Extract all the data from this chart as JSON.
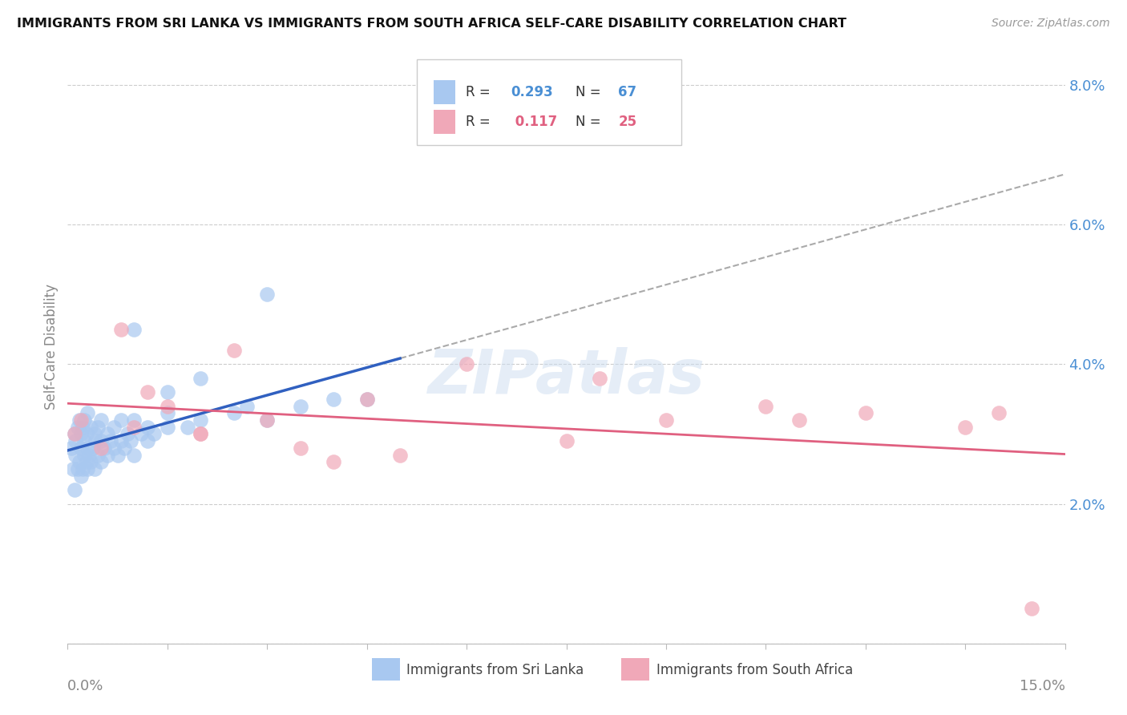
{
  "title": "IMMIGRANTS FROM SRI LANKA VS IMMIGRANTS FROM SOUTH AFRICA SELF-CARE DISABILITY CORRELATION CHART",
  "source": "Source: ZipAtlas.com",
  "ylabel": "Self-Care Disability",
  "xlim": [
    0.0,
    15.0
  ],
  "ylim": [
    0.0,
    8.5
  ],
  "ytick_vals": [
    0.0,
    2.0,
    4.0,
    6.0,
    8.0
  ],
  "ytick_labels": [
    "",
    "2.0%",
    "4.0%",
    "6.0%",
    "8.0%"
  ],
  "color_blue": "#a8c8f0",
  "color_pink": "#f0a8b8",
  "color_blue_text": "#4a8fd4",
  "color_pink_text": "#e06080",
  "color_line_blue": "#3060c0",
  "color_line_pink": "#e06080",
  "color_trend_gray": "#aaaaaa",
  "watermark": "ZIPatlas",
  "legend_r1": "R = 0.293",
  "legend_n1": "N = 67",
  "legend_r2": "R =  0.117",
  "legend_n2": "N = 25",
  "sri_lanka_x": [
    0.05,
    0.08,
    0.1,
    0.1,
    0.12,
    0.12,
    0.15,
    0.15,
    0.18,
    0.18,
    0.2,
    0.2,
    0.2,
    0.22,
    0.22,
    0.25,
    0.25,
    0.25,
    0.28,
    0.28,
    0.3,
    0.3,
    0.3,
    0.32,
    0.35,
    0.35,
    0.38,
    0.4,
    0.4,
    0.42,
    0.45,
    0.45,
    0.5,
    0.5,
    0.5,
    0.55,
    0.6,
    0.6,
    0.65,
    0.7,
    0.7,
    0.75,
    0.8,
    0.8,
    0.85,
    0.9,
    0.95,
    1.0,
    1.0,
    1.1,
    1.2,
    1.2,
    1.3,
    1.5,
    1.5,
    1.8,
    2.0,
    2.5,
    2.7,
    3.0,
    3.0,
    3.5,
    4.0,
    4.5,
    1.0,
    1.5,
    2.0
  ],
  "sri_lanka_y": [
    2.8,
    2.5,
    2.2,
    3.0,
    2.7,
    2.9,
    2.5,
    3.1,
    2.6,
    3.2,
    2.4,
    2.8,
    3.0,
    2.5,
    3.1,
    2.7,
    2.9,
    3.2,
    2.6,
    3.0,
    2.5,
    2.8,
    3.3,
    2.7,
    2.6,
    3.1,
    2.8,
    2.5,
    3.0,
    2.9,
    2.7,
    3.1,
    2.6,
    2.9,
    3.2,
    2.8,
    2.7,
    3.0,
    2.9,
    2.8,
    3.1,
    2.7,
    2.9,
    3.2,
    2.8,
    3.0,
    2.9,
    2.7,
    3.2,
    3.0,
    2.9,
    3.1,
    3.0,
    3.1,
    3.3,
    3.1,
    3.2,
    3.3,
    3.4,
    3.2,
    5.0,
    3.4,
    3.5,
    3.5,
    4.5,
    3.6,
    3.8
  ],
  "south_africa_x": [
    0.1,
    0.2,
    0.5,
    0.8,
    1.0,
    1.5,
    2.0,
    2.5,
    3.5,
    4.5,
    5.0,
    6.0,
    7.5,
    9.0,
    10.5,
    12.0,
    13.5,
    14.5,
    1.2,
    2.0,
    3.0,
    4.0,
    8.0,
    11.0,
    14.0
  ],
  "south_africa_y": [
    3.0,
    3.2,
    2.8,
    4.5,
    3.1,
    3.4,
    3.0,
    4.2,
    2.8,
    3.5,
    2.7,
    4.0,
    2.9,
    3.2,
    3.4,
    3.3,
    3.1,
    0.5,
    3.6,
    3.0,
    3.2,
    2.6,
    3.8,
    3.2,
    3.3
  ]
}
